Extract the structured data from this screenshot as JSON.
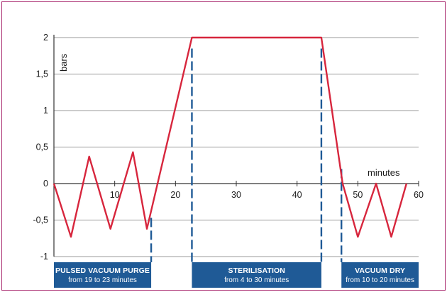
{
  "chart_data": {
    "type": "line",
    "ylabel": "bars",
    "xlabel": "minutes",
    "xlim": [
      0,
      60
    ],
    "ylim": [
      -1,
      2
    ],
    "x_ticks": [
      {
        "value": 10,
        "label": "10"
      },
      {
        "value": 20,
        "label": "20"
      },
      {
        "value": 30,
        "label": "30"
      },
      {
        "value": 40,
        "label": "40"
      },
      {
        "value": 50,
        "label": "50"
      },
      {
        "value": 60,
        "label": "60"
      }
    ],
    "y_ticks": [
      {
        "value": 2,
        "label": "2"
      },
      {
        "value": 1.5,
        "label": "1,5"
      },
      {
        "value": 1,
        "label": "1"
      },
      {
        "value": 0.5,
        "label": "0,5"
      },
      {
        "value": 0,
        "label": "0"
      },
      {
        "value": -0.5,
        "label": "-0,5"
      },
      {
        "value": -1,
        "label": "-1"
      }
    ],
    "grid": true,
    "line_color": "#d7263d",
    "series": [
      {
        "points": [
          [
            0,
            0
          ],
          [
            2.8,
            -0.73
          ],
          [
            5.8,
            0.37
          ],
          [
            9.3,
            -0.62
          ],
          [
            13,
            0.43
          ],
          [
            15.3,
            -0.62
          ],
          [
            22.7,
            2
          ],
          [
            44,
            2
          ],
          [
            47.5,
            0
          ],
          [
            50,
            -0.73
          ],
          [
            53,
            0
          ],
          [
            55.5,
            -0.73
          ],
          [
            58,
            0
          ]
        ]
      }
    ],
    "phase_markers": [
      {
        "x": 16,
        "y_top": -0.47
      },
      {
        "x": 22.7,
        "y_top": 1.85
      },
      {
        "x": 44,
        "y_top": 1.85
      },
      {
        "x": 47.3,
        "y_top": 0.2
      }
    ],
    "marker_color": "#1f5a96",
    "phases": [
      {
        "title": "PULSED VACUUM PURGE",
        "subtitle": "from 19 to 23 minutes",
        "x_start": 0,
        "x_end": 16
      },
      {
        "title": "STERILISATION",
        "subtitle": "from 4 to 30 minutes",
        "x_start": 22.7,
        "x_end": 44
      },
      {
        "title": "VACUUM DRY",
        "subtitle": "from 10 to 20 minutes",
        "x_start": 47.3,
        "x_end": 60
      }
    ],
    "phase_color": "#1f5a96"
  }
}
